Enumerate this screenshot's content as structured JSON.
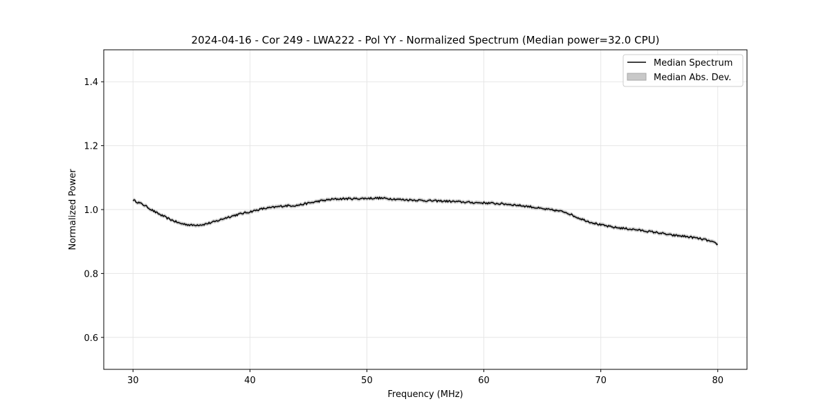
{
  "chart_data": {
    "type": "line",
    "title": "2024-04-16 - Cor 249 - LWA222 - Pol YY - Normalized Spectrum (Median power=32.0 CPU)",
    "xlabel": "Frequency (MHz)",
    "ylabel": "Normalized Power",
    "xlim": [
      27.5,
      82.5
    ],
    "ylim": [
      0.5,
      1.5
    ],
    "xticks": [
      30,
      40,
      50,
      60,
      70,
      80
    ],
    "yticks": [
      0.6,
      0.8,
      1.0,
      1.2,
      1.4
    ],
    "xtick_labels": [
      "30",
      "40",
      "50",
      "60",
      "70",
      "80"
    ],
    "ytick_labels": [
      "0.6",
      "0.8",
      "1.0",
      "1.2",
      "1.4"
    ],
    "grid": true,
    "legend_position": "top-right",
    "legend": [
      "Median Spectrum",
      "Median Abs. Dev."
    ],
    "series": [
      {
        "name": "Median Spectrum",
        "color": "#000000",
        "x": [
          30,
          31,
          32,
          33,
          34,
          35,
          36,
          37,
          38,
          39,
          40,
          41,
          42,
          43,
          44,
          45,
          46,
          47,
          48,
          49,
          50,
          51,
          52,
          53,
          54,
          55,
          56,
          57,
          58,
          59,
          60,
          61,
          62,
          63,
          64,
          65,
          66,
          67,
          68,
          69,
          70,
          71,
          72,
          73,
          74,
          75,
          76,
          77,
          78,
          79,
          80
        ],
        "values": [
          1.03,
          1.013,
          0.99,
          0.972,
          0.957,
          0.951,
          0.953,
          0.962,
          0.975,
          0.985,
          0.993,
          1.002,
          1.007,
          1.012,
          1.013,
          1.02,
          1.027,
          1.032,
          1.034,
          1.034,
          1.035,
          1.036,
          1.034,
          1.031,
          1.03,
          1.028,
          1.027,
          1.026,
          1.024,
          1.022,
          1.021,
          1.019,
          1.017,
          1.013,
          1.009,
          1.002,
          0.998,
          0.992,
          0.975,
          0.962,
          0.952,
          0.945,
          0.941,
          0.937,
          0.932,
          0.927,
          0.92,
          0.917,
          0.912,
          0.905,
          0.892
        ]
      }
    ],
    "band": {
      "name": "Median Abs. Dev.",
      "color": "#c8c8c8",
      "half_width": 0.006
    }
  }
}
